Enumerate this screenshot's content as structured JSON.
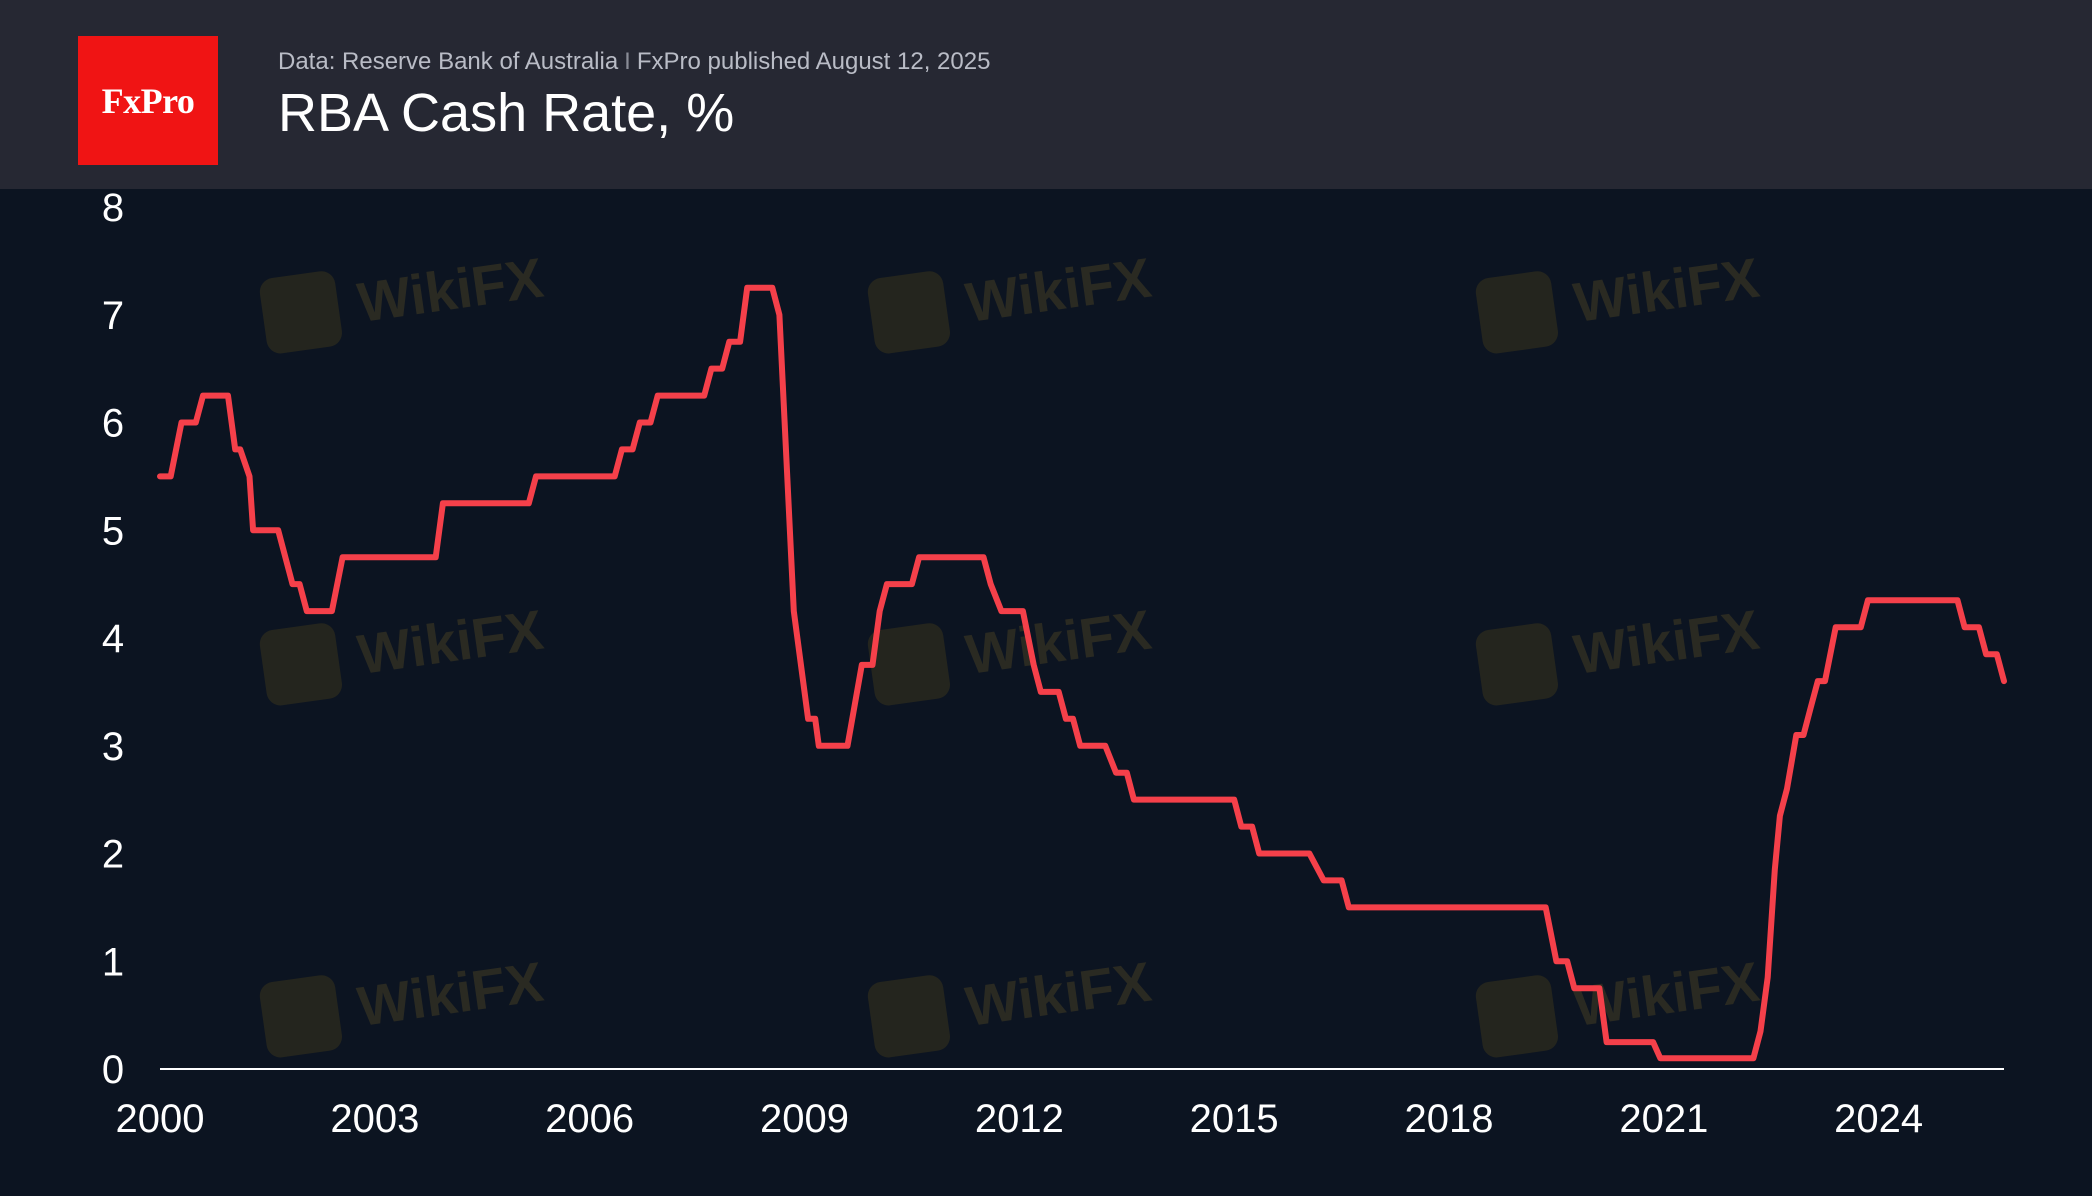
{
  "brand": {
    "logo_text": "FxPro",
    "logo_color": "#f01414"
  },
  "header": {
    "source": "Data: Reserve Bank of Australia",
    "separator": "I",
    "published": "FxPro published August 12, 2025",
    "title": "RBA Cash Rate, %"
  },
  "watermark": {
    "text": "WikiFX"
  },
  "colors": {
    "background": "#0c1421",
    "header_bg": "#262833",
    "line": "#f5404a",
    "axis": "#ffffff"
  },
  "chart_data": {
    "type": "line",
    "title": "RBA Cash Rate, %",
    "xlabel": "",
    "ylabel": "",
    "xlim": [
      2000.0,
      2025.75
    ],
    "ylim": [
      0,
      8
    ],
    "x_ticks": [
      "2000",
      "2003",
      "2006",
      "2009",
      "2012",
      "2015",
      "2018",
      "2021",
      "2024"
    ],
    "y_ticks": [
      "0",
      "1",
      "2",
      "3",
      "4",
      "5",
      "6",
      "7",
      "8"
    ],
    "grid": false,
    "legend": "none",
    "series": [
      {
        "color": "#f5404a",
        "points": [
          [
            2000.0,
            5.5
          ],
          [
            2000.15,
            5.5
          ],
          [
            2000.3,
            6.0
          ],
          [
            2000.5,
            6.0
          ],
          [
            2000.6,
            6.25
          ],
          [
            2000.95,
            6.25
          ],
          [
            2001.05,
            5.75
          ],
          [
            2001.12,
            5.75
          ],
          [
            2001.25,
            5.5
          ],
          [
            2001.3,
            5.0
          ],
          [
            2001.65,
            5.0
          ],
          [
            2001.85,
            4.5
          ],
          [
            2001.95,
            4.5
          ],
          [
            2002.05,
            4.25
          ],
          [
            2002.4,
            4.25
          ],
          [
            2002.55,
            4.75
          ],
          [
            2003.85,
            4.75
          ],
          [
            2003.95,
            5.25
          ],
          [
            2005.15,
            5.25
          ],
          [
            2005.25,
            5.5
          ],
          [
            2006.35,
            5.5
          ],
          [
            2006.45,
            5.75
          ],
          [
            2006.6,
            5.75
          ],
          [
            2006.7,
            6.0
          ],
          [
            2006.85,
            6.0
          ],
          [
            2006.95,
            6.25
          ],
          [
            2007.6,
            6.25
          ],
          [
            2007.7,
            6.5
          ],
          [
            2007.85,
            6.5
          ],
          [
            2007.95,
            6.75
          ],
          [
            2008.1,
            6.75
          ],
          [
            2008.2,
            7.25
          ],
          [
            2008.55,
            7.25
          ],
          [
            2008.65,
            7.0
          ],
          [
            2008.85,
            4.25
          ],
          [
            2009.05,
            3.25
          ],
          [
            2009.15,
            3.25
          ],
          [
            2009.2,
            3.0
          ],
          [
            2009.6,
            3.0
          ],
          [
            2009.8,
            3.75
          ],
          [
            2009.95,
            3.75
          ],
          [
            2010.05,
            4.25
          ],
          [
            2010.15,
            4.5
          ],
          [
            2010.5,
            4.5
          ],
          [
            2010.6,
            4.75
          ],
          [
            2011.5,
            4.75
          ],
          [
            2011.6,
            4.5
          ],
          [
            2011.75,
            4.25
          ],
          [
            2012.05,
            4.25
          ],
          [
            2012.2,
            3.75
          ],
          [
            2012.3,
            3.5
          ],
          [
            2012.55,
            3.5
          ],
          [
            2012.65,
            3.25
          ],
          [
            2012.75,
            3.25
          ],
          [
            2012.85,
            3.0
          ],
          [
            2013.2,
            3.0
          ],
          [
            2013.35,
            2.75
          ],
          [
            2013.5,
            2.75
          ],
          [
            2013.6,
            2.5
          ],
          [
            2015.0,
            2.5
          ],
          [
            2015.1,
            2.25
          ],
          [
            2015.25,
            2.25
          ],
          [
            2015.35,
            2.0
          ],
          [
            2016.05,
            2.0
          ],
          [
            2016.25,
            1.75
          ],
          [
            2016.5,
            1.75
          ],
          [
            2016.6,
            1.5
          ],
          [
            2019.35,
            1.5
          ],
          [
            2019.5,
            1.0
          ],
          [
            2019.65,
            1.0
          ],
          [
            2019.75,
            0.75
          ],
          [
            2020.1,
            0.75
          ],
          [
            2020.2,
            0.25
          ],
          [
            2020.85,
            0.25
          ],
          [
            2020.95,
            0.1
          ],
          [
            2022.25,
            0.1
          ],
          [
            2022.35,
            0.35
          ],
          [
            2022.45,
            0.85
          ],
          [
            2022.55,
            1.85
          ],
          [
            2022.62,
            2.35
          ],
          [
            2022.72,
            2.6
          ],
          [
            2022.85,
            3.1
          ],
          [
            2022.95,
            3.1
          ],
          [
            2023.05,
            3.35
          ],
          [
            2023.15,
            3.6
          ],
          [
            2023.25,
            3.6
          ],
          [
            2023.4,
            4.1
          ],
          [
            2023.75,
            4.1
          ],
          [
            2023.85,
            4.35
          ],
          [
            2025.1,
            4.35
          ],
          [
            2025.2,
            4.1
          ],
          [
            2025.4,
            4.1
          ],
          [
            2025.5,
            3.85
          ],
          [
            2025.65,
            3.85
          ],
          [
            2025.75,
            3.6
          ]
        ]
      }
    ]
  }
}
